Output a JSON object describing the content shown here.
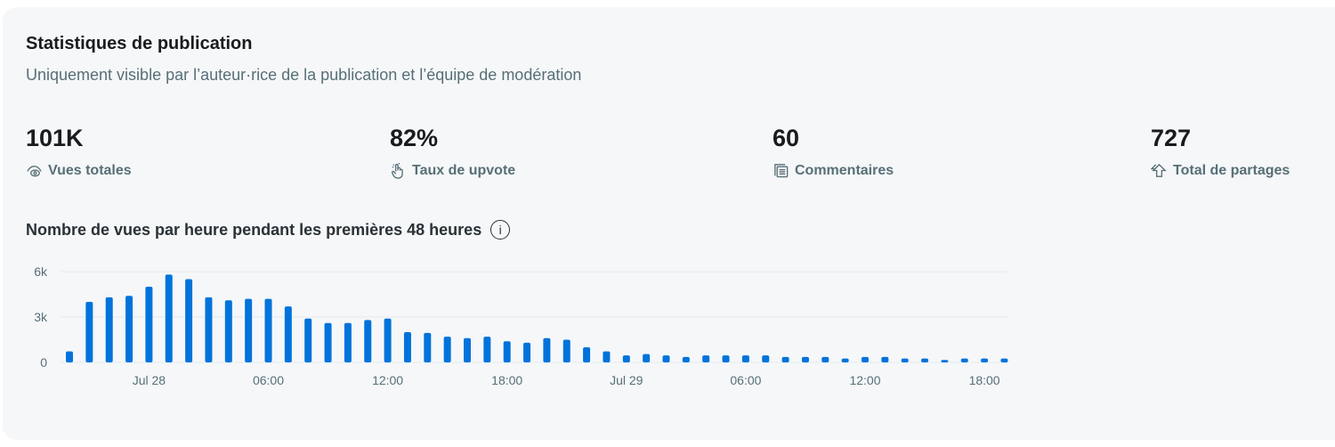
{
  "header": {
    "title": "Statistiques de publication",
    "subtitle": "Uniquement visible par l’auteur·rice de la publication et l’équipe de modération"
  },
  "stats": [
    {
      "value": "101K",
      "label": "Vues totales",
      "icon": "eye-icon"
    },
    {
      "value": "82%",
      "label": "Taux de upvote",
      "icon": "hand-pointer-icon"
    },
    {
      "value": "60",
      "label": "Commentaires",
      "icon": "comments-icon"
    },
    {
      "value": "727",
      "label": "Total de partages",
      "icon": "share-icon"
    }
  ],
  "chart_title": "Nombre de vues par heure pendant les premières 48 heures",
  "info_glyph": "i",
  "colors": {
    "bar": "#0073db",
    "grid": "#e5ebee",
    "text": "#576f76"
  },
  "chart_data": {
    "type": "bar",
    "title": "Nombre de vues par heure pendant les premières 48 heures",
    "ylim": [
      0,
      6000
    ],
    "yticks": [
      {
        "value": 0,
        "label": "0"
      },
      {
        "value": 3000,
        "label": "3k"
      },
      {
        "value": 6000,
        "label": "6k"
      }
    ],
    "xticks": [
      {
        "index": 4,
        "label": "Jul 28"
      },
      {
        "index": 10,
        "label": "06:00"
      },
      {
        "index": 16,
        "label": "12:00"
      },
      {
        "index": 22,
        "label": "18:00"
      },
      {
        "index": 28,
        "label": "Jul 29"
      },
      {
        "index": 34,
        "label": "06:00"
      },
      {
        "index": 40,
        "label": "12:00"
      },
      {
        "index": 46,
        "label": "18:00"
      }
    ],
    "grid": true,
    "values": [
      730,
      4000,
      4300,
      4400,
      5000,
      5800,
      5500,
      4300,
      4100,
      4200,
      4200,
      3700,
      2900,
      2600,
      2600,
      2800,
      2900,
      2000,
      1950,
      1700,
      1600,
      1700,
      1400,
      1300,
      1600,
      1500,
      1000,
      730,
      460,
      550,
      460,
      360,
      460,
      460,
      460,
      460,
      360,
      360,
      360,
      260,
      360,
      360,
      260,
      260,
      160,
      260,
      260,
      260
    ]
  }
}
